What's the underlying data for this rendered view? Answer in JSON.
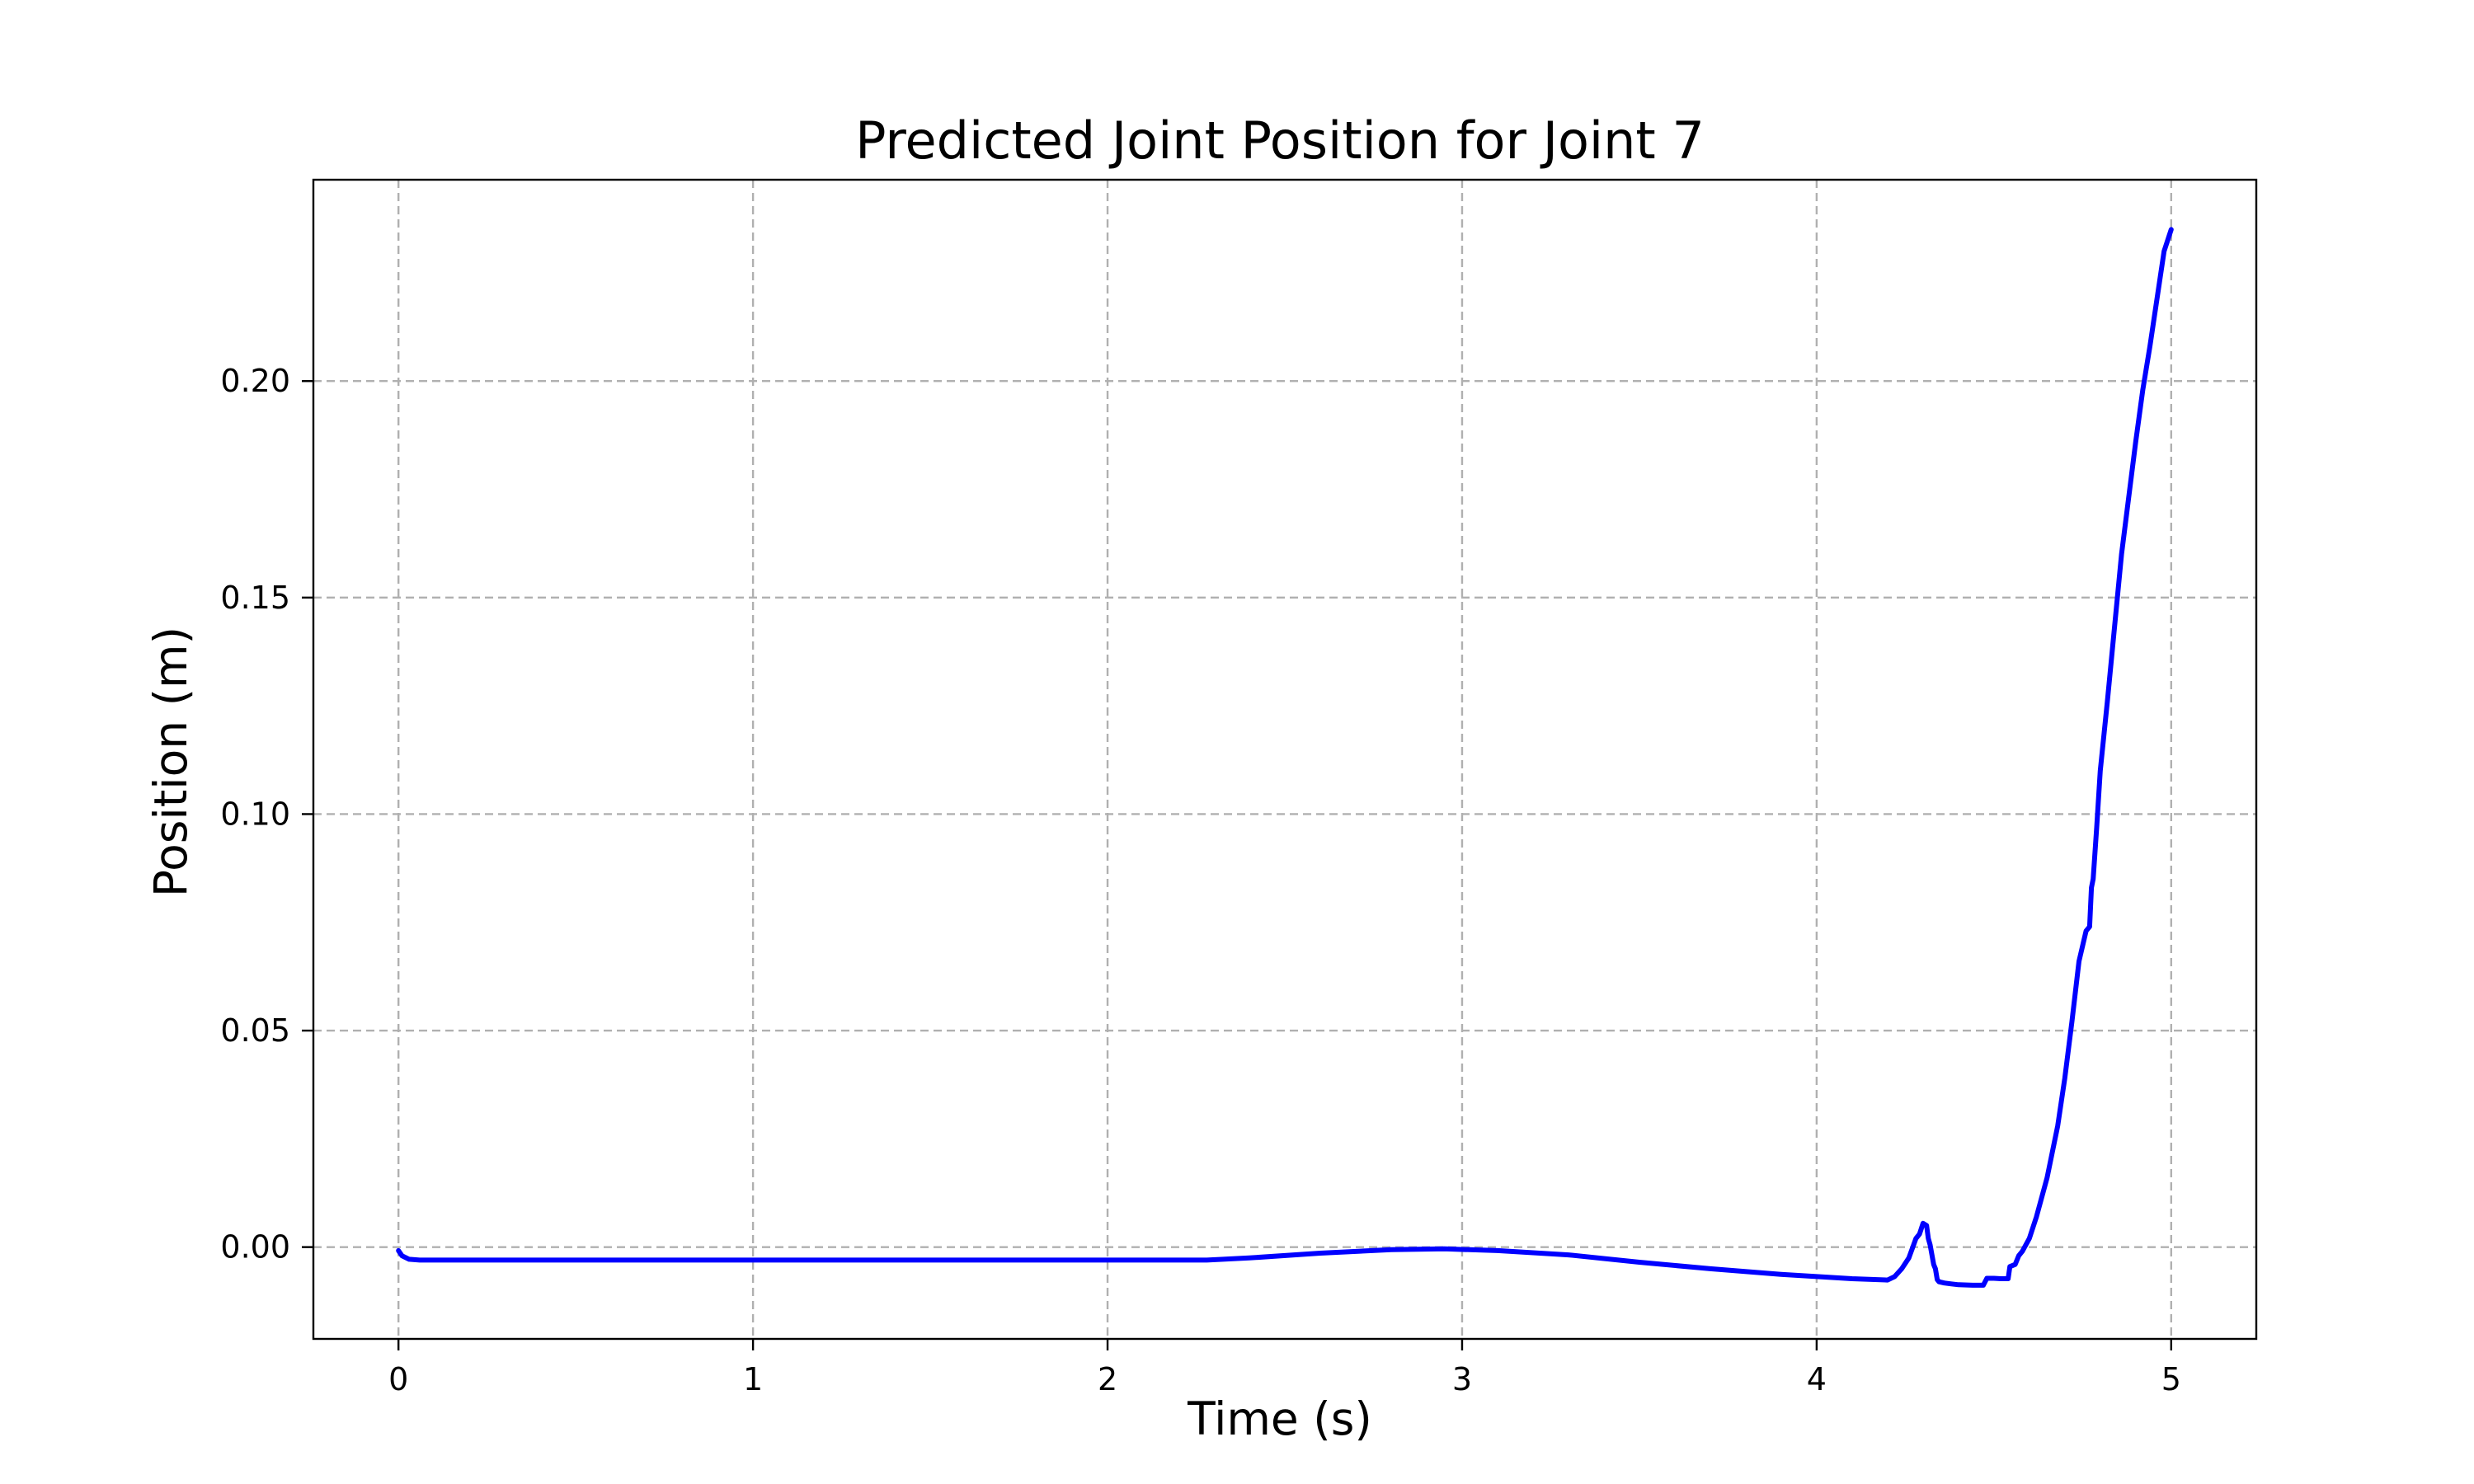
{
  "chart_data": {
    "type": "line",
    "title": "Predicted Joint Position for Joint 7",
    "xlabel": "Time (s)",
    "ylabel": "Position (m)",
    "xlim": [
      -0.24,
      5.24
    ],
    "ylim": [
      -0.0212,
      0.2465
    ],
    "xticks": [
      0,
      1,
      2,
      3,
      4,
      5
    ],
    "xtick_labels": [
      "0",
      "1",
      "2",
      "3",
      "4",
      "5"
    ],
    "yticks": [
      0.0,
      0.05,
      0.1,
      0.15,
      0.2
    ],
    "ytick_labels": [
      "0.00",
      "0.05",
      "0.10",
      "0.15",
      "0.20"
    ],
    "grid": true,
    "series": [
      {
        "color": "#0000ff",
        "x": [
          0.0,
          0.01,
          0.03,
          0.06,
          0.1,
          0.5,
          1.0,
          1.5,
          2.0,
          2.28,
          2.4,
          2.6,
          2.8,
          2.95,
          3.1,
          3.3,
          3.5,
          3.7,
          3.9,
          4.1,
          4.2,
          4.22,
          4.24,
          4.26,
          4.28,
          4.29,
          4.3,
          4.31,
          4.315,
          4.32,
          4.33,
          4.335,
          4.34,
          4.345,
          4.36,
          4.38,
          4.4,
          4.44,
          4.47,
          4.48,
          4.5,
          4.52,
          4.53,
          4.54,
          4.545,
          4.56,
          4.57,
          4.58,
          4.6,
          4.62,
          4.65,
          4.68,
          4.7,
          4.72,
          4.74,
          4.76,
          4.77,
          4.775,
          4.78,
          4.79,
          4.8,
          4.82,
          4.84,
          4.86,
          4.88,
          4.9,
          4.92,
          4.94,
          4.96,
          4.98,
          5.0
        ],
        "y": [
          -0.0008,
          -0.002,
          -0.0028,
          -0.003,
          -0.003,
          -0.003,
          -0.003,
          -0.003,
          -0.003,
          -0.003,
          -0.0025,
          -0.0014,
          -0.0006,
          -0.0004,
          -0.0008,
          -0.0018,
          -0.0035,
          -0.005,
          -0.0063,
          -0.0073,
          -0.0076,
          -0.0068,
          -0.005,
          -0.0025,
          0.002,
          0.003,
          0.0055,
          0.005,
          0.002,
          0.0005,
          -0.004,
          -0.005,
          -0.0075,
          -0.008,
          -0.0083,
          -0.0085,
          -0.0087,
          -0.0088,
          -0.0088,
          -0.0072,
          -0.0072,
          -0.0073,
          -0.0073,
          -0.0073,
          -0.0045,
          -0.004,
          -0.002,
          -0.001,
          0.002,
          0.007,
          0.016,
          0.028,
          0.039,
          0.052,
          0.066,
          0.073,
          0.074,
          0.083,
          0.085,
          0.097,
          0.11,
          0.126,
          0.143,
          0.16,
          0.173,
          0.186,
          0.198,
          0.208,
          0.219,
          0.23,
          0.235
        ]
      }
    ]
  }
}
